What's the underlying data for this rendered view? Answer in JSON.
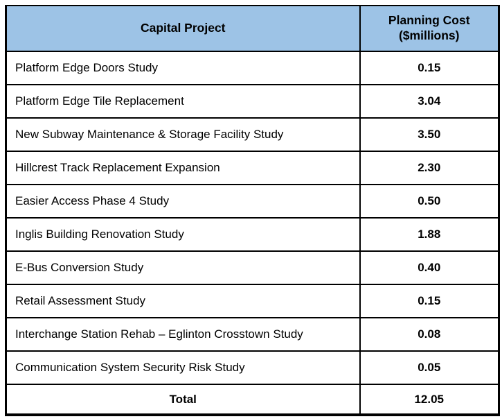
{
  "colors": {
    "header_background": "#9DC3E6",
    "border": "#000000",
    "text": "#000000",
    "page_background": "#ffffff"
  },
  "table": {
    "columns": [
      {
        "label": "Capital Project"
      },
      {
        "label": "Planning Cost ($millions)"
      }
    ],
    "rows": [
      {
        "project": "Platform Edge Doors Study",
        "cost": "0.15"
      },
      {
        "project": "Platform Edge Tile Replacement",
        "cost": "3.04"
      },
      {
        "project": "New Subway Maintenance & Storage Facility Study",
        "cost": "3.50"
      },
      {
        "project": "Hillcrest Track Replacement Expansion",
        "cost": "2.30"
      },
      {
        "project": "Easier Access Phase 4 Study",
        "cost": "0.50"
      },
      {
        "project": "Inglis Building Renovation Study",
        "cost": "1.88"
      },
      {
        "project": "E-Bus Conversion Study",
        "cost": "0.40"
      },
      {
        "project": "Retail Assessment Study",
        "cost": "0.15"
      },
      {
        "project": "Interchange Station Rehab – Eglinton Crosstown Study",
        "cost": "0.08"
      },
      {
        "project": "Communication System Security Risk Study",
        "cost": "0.05"
      }
    ],
    "total": {
      "label": "Total",
      "cost": "12.05"
    }
  },
  "chart_data": {
    "type": "table",
    "title": "",
    "columns": [
      "Capital Project",
      "Planning Cost ($millions)"
    ],
    "categories": [
      "Platform Edge Doors Study",
      "Platform Edge Tile Replacement",
      "New Subway Maintenance & Storage Facility Study",
      "Hillcrest Track Replacement Expansion",
      "Easier Access Phase 4 Study",
      "Inglis Building Renovation Study",
      "E-Bus Conversion Study",
      "Retail Assessment Study",
      "Interchange Station Rehab – Eglinton Crosstown Study",
      "Communication System Security Risk Study"
    ],
    "values": [
      0.15,
      3.04,
      3.5,
      2.3,
      0.5,
      1.88,
      0.4,
      0.15,
      0.08,
      0.05
    ],
    "total_label": "Total",
    "total_value": 12.05,
    "units": "$millions"
  }
}
